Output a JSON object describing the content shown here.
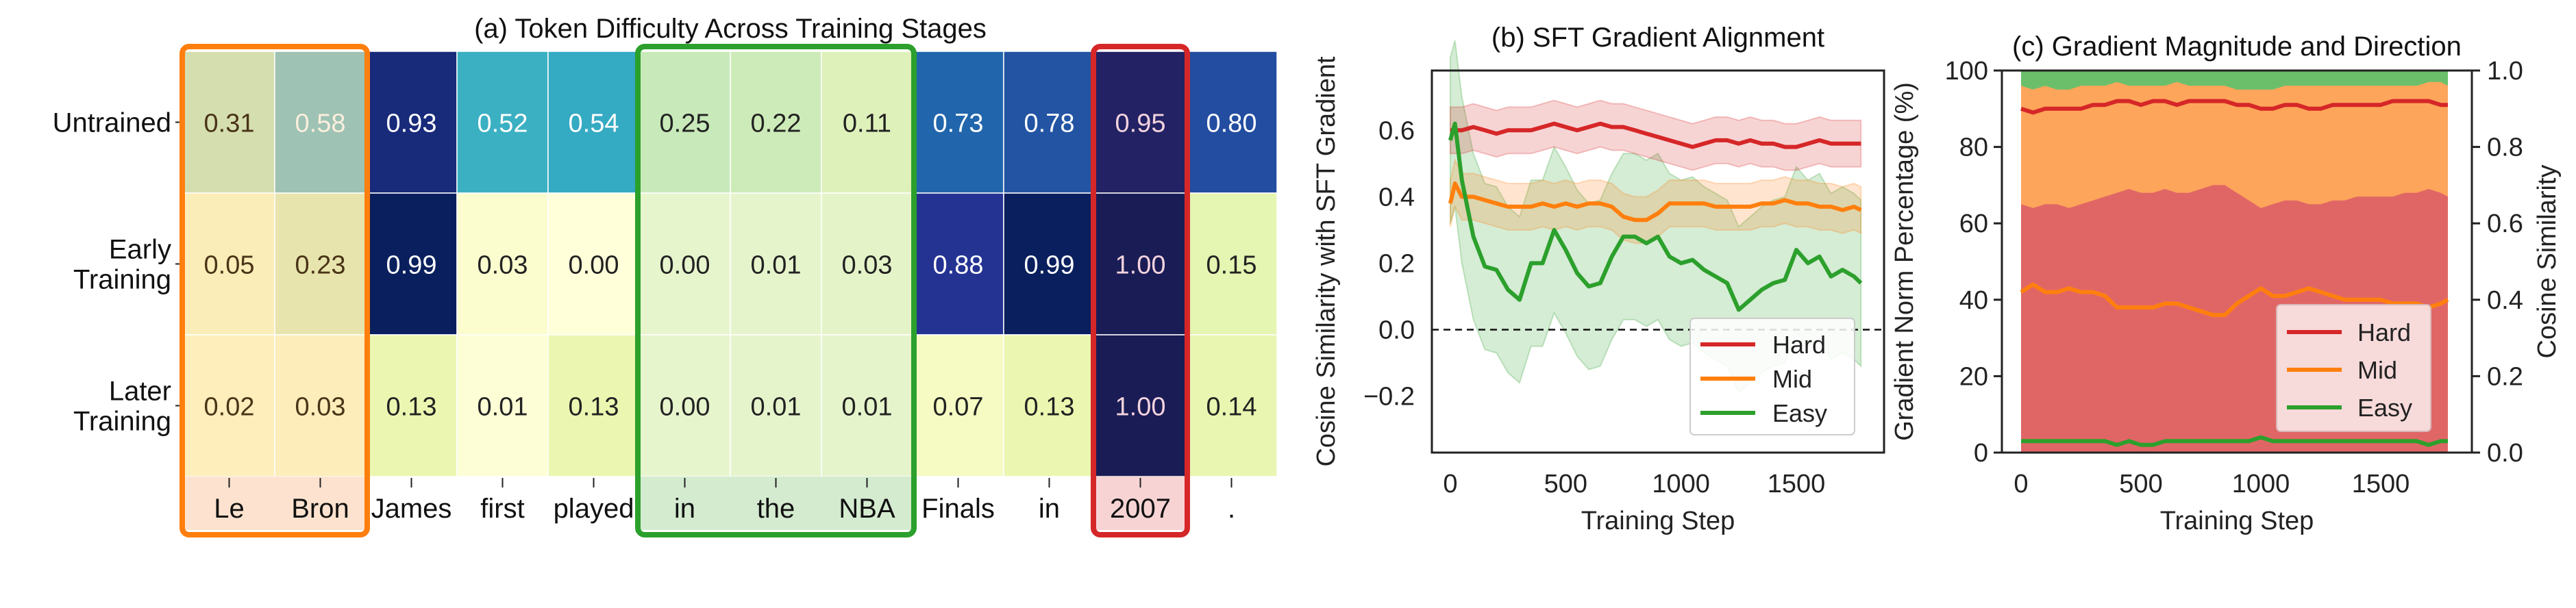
{
  "chart_data": [
    {
      "type": "heatmap",
      "title": "(a) Token Difficulty Across Training Stages",
      "row_labels": [
        "Untrained",
        "Early\nTraining",
        "Later\nTraining"
      ],
      "col_labels": [
        "Le",
        "Bron",
        "James",
        "first",
        "played",
        "in",
        "the",
        "NBA",
        "Finals",
        "in",
        "2007",
        "."
      ],
      "values": [
        [
          0.31,
          0.58,
          0.93,
          0.52,
          0.54,
          0.25,
          0.22,
          0.11,
          0.73,
          0.78,
          0.95,
          0.8
        ],
        [
          0.05,
          0.23,
          0.99,
          0.03,
          0.0,
          0.0,
          0.01,
          0.03,
          0.88,
          0.99,
          1.0,
          0.15
        ],
        [
          0.02,
          0.03,
          0.13,
          0.01,
          0.13,
          0.0,
          0.01,
          0.01,
          0.07,
          0.13,
          1.0,
          0.14
        ]
      ],
      "colormap": "YlGnBu",
      "vmin": 0,
      "vmax": 1,
      "highlights": [
        {
          "cols": [
            0,
            1
          ],
          "color": "#ff7f0e",
          "tint": "#fde3cf"
        },
        {
          "cols": [
            5,
            6,
            7
          ],
          "color": "#2ca02c",
          "tint": "#d4ebd0"
        },
        {
          "cols": [
            10
          ],
          "color": "#d62728",
          "tint": "#f7d3d4"
        }
      ]
    },
    {
      "type": "line",
      "title": "(b) SFT Gradient Alignment",
      "xlabel": "Training Step",
      "ylabel": "Cosine Similarity with SFT Gradient",
      "xlim": [
        -80,
        1880
      ],
      "ylim": [
        -0.37,
        0.78
      ],
      "xticks": [
        0,
        500,
        1000,
        1500
      ],
      "yticks": [
        -0.2,
        0.0,
        0.2,
        0.4,
        0.6
      ],
      "ytick_labels": [
        "−0.2",
        "0.0",
        "0.2",
        "0.4",
        "0.6"
      ],
      "reference_line": {
        "y": 0.0,
        "style": "dashed"
      },
      "legend": "lower-right",
      "x": [
        0,
        20,
        50,
        100,
        150,
        200,
        250,
        300,
        350,
        400,
        450,
        500,
        550,
        600,
        650,
        700,
        750,
        800,
        850,
        900,
        950,
        1000,
        1050,
        1100,
        1150,
        1200,
        1250,
        1300,
        1350,
        1400,
        1450,
        1500,
        1550,
        1600,
        1650,
        1700,
        1750,
        1780
      ],
      "series": [
        {
          "name": "Hard",
          "color": "#d62728",
          "values": [
            0.6,
            0.6,
            0.6,
            0.61,
            0.6,
            0.59,
            0.6,
            0.6,
            0.6,
            0.61,
            0.62,
            0.61,
            0.6,
            0.61,
            0.62,
            0.61,
            0.61,
            0.6,
            0.59,
            0.58,
            0.57,
            0.56,
            0.55,
            0.56,
            0.57,
            0.57,
            0.56,
            0.57,
            0.56,
            0.56,
            0.55,
            0.55,
            0.56,
            0.57,
            0.56,
            0.56,
            0.56,
            0.56
          ],
          "std": 0.07
        },
        {
          "name": "Mid",
          "color": "#ff7f0e",
          "values": [
            0.38,
            0.44,
            0.4,
            0.4,
            0.39,
            0.38,
            0.37,
            0.37,
            0.37,
            0.38,
            0.37,
            0.38,
            0.37,
            0.38,
            0.38,
            0.37,
            0.34,
            0.33,
            0.33,
            0.35,
            0.38,
            0.38,
            0.38,
            0.38,
            0.37,
            0.37,
            0.37,
            0.37,
            0.38,
            0.38,
            0.39,
            0.38,
            0.38,
            0.37,
            0.37,
            0.36,
            0.37,
            0.36
          ],
          "std": 0.07
        },
        {
          "name": "Easy",
          "color": "#2ca02c",
          "values": [
            0.57,
            0.62,
            0.45,
            0.28,
            0.19,
            0.18,
            0.12,
            0.09,
            0.2,
            0.2,
            0.3,
            0.24,
            0.17,
            0.13,
            0.14,
            0.22,
            0.28,
            0.28,
            0.26,
            0.28,
            0.22,
            0.2,
            0.21,
            0.18,
            0.16,
            0.14,
            0.06,
            0.09,
            0.12,
            0.14,
            0.15,
            0.24,
            0.2,
            0.22,
            0.16,
            0.18,
            0.16,
            0.14
          ],
          "std": 0.25
        }
      ]
    },
    {
      "type": "area",
      "title": "(c) Gradient Magnitude and Direction",
      "xlabel": "Training Step",
      "ylabel": "Gradient Norm Percentage (%)",
      "ylabel_right": "Cosine Similarity",
      "xlim": [
        -80,
        1880
      ],
      "ylim": [
        0,
        100
      ],
      "ylim_right": [
        0,
        1.0
      ],
      "xticks": [
        0,
        500,
        1000,
        1500
      ],
      "yticks": [
        0,
        20,
        40,
        60,
        80,
        100
      ],
      "yticks_right": [
        "0.0",
        "0.2",
        "0.4",
        "0.6",
        "0.8",
        "1.0"
      ],
      "legend": "lower-right",
      "x": [
        0,
        50,
        100,
        150,
        200,
        250,
        300,
        350,
        400,
        450,
        500,
        550,
        600,
        650,
        700,
        750,
        800,
        850,
        900,
        950,
        1000,
        1050,
        1100,
        1150,
        1200,
        1250,
        1300,
        1350,
        1400,
        1450,
        1500,
        1550,
        1600,
        1650,
        1700,
        1750,
        1780
      ],
      "stack": [
        {
          "name": "Hard",
          "color": "#e06666",
          "cum_top": [
            65,
            64,
            65,
            65,
            64,
            65,
            66,
            67,
            68,
            69,
            68,
            68,
            69,
            68,
            68,
            69,
            70,
            70,
            68,
            66,
            64,
            65,
            66,
            66,
            65,
            65,
            66,
            66,
            67,
            67,
            67,
            67,
            68,
            68,
            69,
            68,
            67
          ]
        },
        {
          "name": "Mid",
          "color": "#fda55a",
          "cum_top": [
            96,
            95,
            96,
            95,
            95,
            96,
            96,
            96,
            97,
            96,
            96,
            96,
            96,
            97,
            96,
            96,
            96,
            96,
            95,
            95,
            95,
            95,
            96,
            96,
            96,
            96,
            96,
            96,
            96,
            96,
            96,
            96,
            96,
            96,
            97,
            97,
            96
          ]
        },
        {
          "name": "Easy",
          "color": "#6bbf6b",
          "cum_top": [
            100,
            100,
            100,
            100,
            100,
            100,
            100,
            100,
            100,
            100,
            100,
            100,
            100,
            100,
            100,
            100,
            100,
            100,
            100,
            100,
            100,
            100,
            100,
            100,
            100,
            100,
            100,
            100,
            100,
            100,
            100,
            100,
            100,
            100,
            100,
            100,
            100
          ]
        }
      ],
      "series": [
        {
          "name": "Hard",
          "color": "#d62728",
          "axis": "right",
          "values": [
            0.9,
            0.89,
            0.9,
            0.9,
            0.9,
            0.9,
            0.91,
            0.91,
            0.92,
            0.92,
            0.91,
            0.92,
            0.92,
            0.91,
            0.92,
            0.92,
            0.92,
            0.92,
            0.91,
            0.91,
            0.9,
            0.9,
            0.91,
            0.91,
            0.9,
            0.9,
            0.91,
            0.91,
            0.91,
            0.91,
            0.91,
            0.92,
            0.92,
            0.92,
            0.92,
            0.91,
            0.91
          ]
        },
        {
          "name": "Mid",
          "color": "#ff7f0e",
          "axis": "right",
          "values": [
            0.42,
            0.44,
            0.42,
            0.42,
            0.43,
            0.42,
            0.42,
            0.41,
            0.38,
            0.38,
            0.38,
            0.38,
            0.39,
            0.39,
            0.38,
            0.37,
            0.36,
            0.36,
            0.39,
            0.41,
            0.43,
            0.41,
            0.41,
            0.42,
            0.43,
            0.42,
            0.41,
            0.4,
            0.4,
            0.4,
            0.4,
            0.39,
            0.39,
            0.39,
            0.38,
            0.39,
            0.4
          ]
        },
        {
          "name": "Easy",
          "color": "#2ca02c",
          "axis": "right",
          "values": [
            0.03,
            0.03,
            0.03,
            0.03,
            0.03,
            0.03,
            0.03,
            0.03,
            0.02,
            0.03,
            0.02,
            0.02,
            0.03,
            0.03,
            0.03,
            0.03,
            0.03,
            0.03,
            0.03,
            0.03,
            0.04,
            0.03,
            0.03,
            0.03,
            0.03,
            0.03,
            0.03,
            0.03,
            0.03,
            0.03,
            0.03,
            0.03,
            0.03,
            0.03,
            0.02,
            0.03,
            0.03
          ]
        }
      ]
    }
  ]
}
